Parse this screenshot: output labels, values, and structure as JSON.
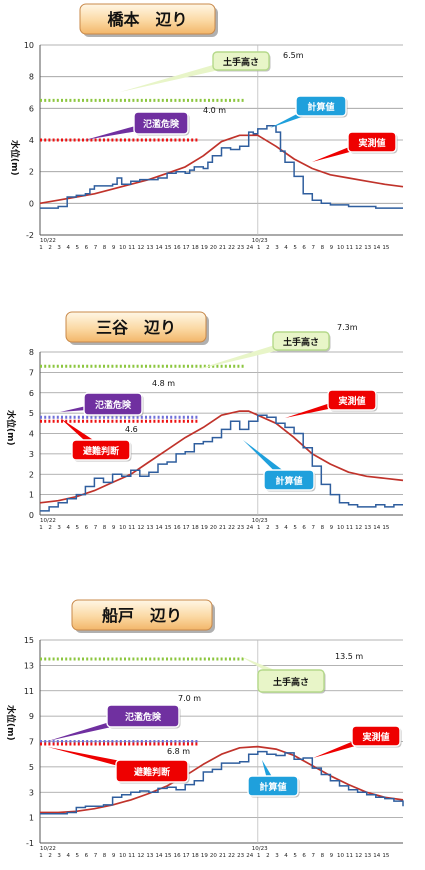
{
  "colors": {
    "measured": "#c0332b",
    "computed": "#2f5e9e",
    "levee": "#8cc63f",
    "danger": "#2f3fbf",
    "danger_dots": "#6f6fd8",
    "evac_dots": "#ee1111",
    "callout_levee": "#e8f5c8",
    "callout_danger": "#7030a0",
    "callout_computed": "#1fa0dc",
    "callout_measured": "#ee0000",
    "callout_evac": "#ee0000"
  },
  "chart_data": [
    {
      "type": "line",
      "title": "橋本　辺り",
      "ylabel": "水位(m)",
      "ylim": [
        -2,
        10
      ],
      "yticks": [
        -2,
        0,
        2,
        4,
        6,
        8,
        10
      ],
      "date_labels": [
        "10/22",
        "10/23"
      ],
      "hour_labels_1": [
        "1",
        "2",
        "3",
        "4",
        "5",
        "6",
        "7",
        "8",
        "9",
        "10",
        "11",
        "12",
        "13",
        "14",
        "15",
        "16",
        "17",
        "18",
        "19",
        "20",
        "21",
        "22",
        "23",
        "24"
      ],
      "hour_labels_2": [
        "1",
        "2",
        "3",
        "4",
        "5",
        "6",
        "7",
        "8",
        "9",
        "10",
        "11",
        "12",
        "13",
        "14",
        "15"
      ],
      "ref_lines": [
        {
          "name": "levee",
          "value": 6.5,
          "x_end": 22.5,
          "label": "6.5m",
          "style": "green-dots"
        },
        {
          "name": "danger",
          "value": 4.0,
          "x_end": 17.5,
          "label": "4.0 m",
          "style": "red-dots"
        }
      ],
      "callouts": {
        "levee": "土手高さ",
        "danger": "氾濫危険",
        "computed": "計算値",
        "measured": "実測値"
      },
      "series": [
        {
          "name": "実測値",
          "key": "measured",
          "x": [
            0,
            2,
            4,
            6,
            8,
            10,
            12,
            14,
            16,
            18,
            20,
            22,
            24,
            26,
            28,
            30,
            32,
            34,
            36,
            38,
            40
          ],
          "y": [
            0.0,
            0.2,
            0.4,
            0.6,
            0.9,
            1.2,
            1.5,
            1.9,
            2.3,
            3.0,
            3.9,
            4.3,
            4.3,
            3.6,
            2.8,
            2.2,
            1.8,
            1.6,
            1.4,
            1.2,
            1.05
          ]
        },
        {
          "name": "計算値",
          "key": "computed",
          "x": [
            0,
            1,
            2,
            3,
            4,
            5,
            5.5,
            6,
            7,
            8,
            8.5,
            9,
            10,
            11,
            12,
            13,
            14,
            15,
            16,
            16.5,
            17,
            18,
            18.5,
            19,
            20,
            21,
            22,
            23,
            23.5,
            24,
            25,
            26,
            26.5,
            27,
            28,
            29,
            30,
            31,
            32,
            33,
            34,
            35,
            36,
            37,
            38,
            39,
            40
          ],
          "y": [
            -0.3,
            -0.3,
            -0.2,
            0.4,
            0.5,
            0.6,
            0.9,
            1.1,
            1.1,
            1.2,
            1.6,
            1.2,
            1.4,
            1.5,
            1.5,
            1.6,
            1.9,
            2.0,
            1.9,
            2.1,
            2.3,
            2.2,
            2.6,
            3.0,
            3.5,
            3.4,
            3.6,
            4.5,
            4.4,
            4.7,
            4.9,
            4.5,
            3.3,
            2.6,
            1.7,
            0.6,
            0.2,
            0.0,
            -0.1,
            -0.1,
            -0.2,
            -0.2,
            -0.2,
            -0.3,
            -0.3,
            -0.3,
            -0.3
          ]
        }
      ]
    },
    {
      "type": "line",
      "title": "三谷　辺り",
      "ylabel": "水位(m)",
      "ylim": [
        0,
        8
      ],
      "yticks": [
        0,
        1,
        2,
        3,
        4,
        5,
        6,
        7,
        8
      ],
      "date_labels": [
        "10/22",
        "10/23"
      ],
      "hour_labels_1": [
        "1",
        "2",
        "3",
        "4",
        "5",
        "6",
        "7",
        "8",
        "9",
        "10",
        "11",
        "12",
        "13",
        "14",
        "15",
        "16",
        "17",
        "18",
        "19",
        "20",
        "21",
        "22",
        "23",
        "24"
      ],
      "hour_labels_2": [
        "1",
        "2",
        "3",
        "4",
        "5",
        "6",
        "7",
        "8",
        "9",
        "10",
        "11",
        "12",
        "13",
        "14",
        "15"
      ],
      "ref_lines": [
        {
          "name": "levee",
          "value": 7.3,
          "x_end": 22.5,
          "label": "7.3m",
          "style": "green-dots"
        },
        {
          "name": "danger",
          "value": 4.8,
          "x_end": 17.5,
          "label": "4.8 m",
          "style": "blue-dots"
        },
        {
          "name": "evac",
          "value": 4.6,
          "x_end": 17.5,
          "label": "4.6",
          "style": "red-dots"
        }
      ],
      "callouts": {
        "levee": "土手高さ",
        "danger": "氾濫危険",
        "evac": "避難判断",
        "computed": "計算値",
        "measured": "実測値"
      },
      "series": [
        {
          "name": "実測値",
          "key": "measured",
          "x": [
            0,
            2,
            4,
            6,
            8,
            10,
            12,
            14,
            16,
            18,
            20,
            22,
            23,
            24,
            26,
            28,
            30,
            32,
            34,
            36,
            38,
            40
          ],
          "y": [
            0.6,
            0.7,
            0.9,
            1.2,
            1.6,
            2.0,
            2.6,
            3.2,
            3.8,
            4.3,
            4.9,
            5.1,
            5.1,
            4.9,
            4.5,
            3.8,
            3.0,
            2.5,
            2.1,
            1.9,
            1.8,
            1.7
          ]
        },
        {
          "name": "計算値",
          "key": "computed",
          "x": [
            0,
            1,
            2,
            3,
            4,
            5,
            6,
            7,
            8,
            9,
            10,
            11,
            12,
            13,
            14,
            15,
            16,
            17,
            18,
            19,
            20,
            21,
            22,
            23,
            24,
            25,
            26,
            27,
            28,
            29,
            30,
            31,
            32,
            33,
            34,
            35,
            36,
            37,
            38,
            39,
            40
          ],
          "y": [
            0.2,
            0.4,
            0.6,
            0.8,
            1.0,
            1.4,
            1.8,
            1.6,
            2.0,
            1.9,
            2.2,
            1.9,
            2.1,
            2.5,
            2.6,
            3.0,
            3.1,
            3.5,
            3.6,
            3.8,
            4.2,
            4.6,
            4.2,
            4.6,
            4.9,
            4.8,
            4.5,
            4.3,
            4.0,
            3.3,
            2.4,
            1.5,
            1.0,
            0.6,
            0.5,
            0.4,
            0.4,
            0.5,
            0.4,
            0.5,
            0.5
          ]
        }
      ]
    },
    {
      "type": "line",
      "title": "船戸　辺り",
      "ylabel": "水位(m)",
      "ylim": [
        -1,
        15
      ],
      "yticks": [
        -1,
        1,
        3,
        5,
        7,
        9,
        11,
        13,
        15
      ],
      "date_labels": [
        "10/22",
        "10/23"
      ],
      "hour_labels_1": [
        "1",
        "2",
        "3",
        "4",
        "5",
        "6",
        "7",
        "8",
        "9",
        "10",
        "11",
        "12",
        "13",
        "14",
        "15",
        "16",
        "17",
        "18",
        "19",
        "20",
        "21",
        "22",
        "23",
        "24"
      ],
      "hour_labels_2": [
        "1",
        "2",
        "3",
        "4",
        "5",
        "6",
        "7",
        "8",
        "9",
        "10",
        "11",
        "12",
        "13",
        "14",
        "15"
      ],
      "ref_lines": [
        {
          "name": "levee",
          "value": 13.5,
          "x_end": 22.5,
          "label": "13.5 m",
          "style": "green-dots"
        },
        {
          "name": "danger",
          "value": 7.0,
          "x_end": 17.5,
          "label": "7.0 m",
          "style": "blue-dots"
        },
        {
          "name": "evac",
          "value": 6.8,
          "x_end": 17.5,
          "label": "6.8 m",
          "style": "red-dots"
        }
      ],
      "callouts": {
        "levee": "土手高さ",
        "danger": "氾濫危険",
        "evac": "避難判断",
        "computed": "計算値",
        "measured": "実測値"
      },
      "series": [
        {
          "name": "実測値",
          "key": "measured",
          "x": [
            0,
            2,
            4,
            6,
            8,
            10,
            12,
            14,
            16,
            18,
            20,
            22,
            24,
            26,
            28,
            30,
            32,
            34,
            36,
            38,
            40
          ],
          "y": [
            1.4,
            1.4,
            1.5,
            1.7,
            2.0,
            2.4,
            2.9,
            3.5,
            4.3,
            5.2,
            6.0,
            6.5,
            6.6,
            6.4,
            5.9,
            5.1,
            4.3,
            3.6,
            3.0,
            2.6,
            2.4
          ]
        },
        {
          "name": "計算値",
          "key": "computed",
          "x": [
            0,
            1,
            2,
            3,
            4,
            5,
            6,
            7,
            8,
            9,
            10,
            11,
            12,
            13,
            14,
            15,
            16,
            17,
            18,
            19,
            20,
            21,
            22,
            23,
            24,
            25,
            26,
            27,
            28,
            29,
            30,
            31,
            32,
            33,
            34,
            35,
            36,
            37,
            38,
            39,
            40
          ],
          "y": [
            1.3,
            1.3,
            1.3,
            1.4,
            1.8,
            1.9,
            1.9,
            2.0,
            2.6,
            2.8,
            3.0,
            3.1,
            3.0,
            3.3,
            3.4,
            3.2,
            3.6,
            3.9,
            4.6,
            4.8,
            5.3,
            5.3,
            5.4,
            6.0,
            6.2,
            6.0,
            5.9,
            6.1,
            5.6,
            5.7,
            4.9,
            4.4,
            3.9,
            3.5,
            3.2,
            3.0,
            2.8,
            2.6,
            2.5,
            2.3,
            1.9
          ]
        }
      ]
    }
  ]
}
